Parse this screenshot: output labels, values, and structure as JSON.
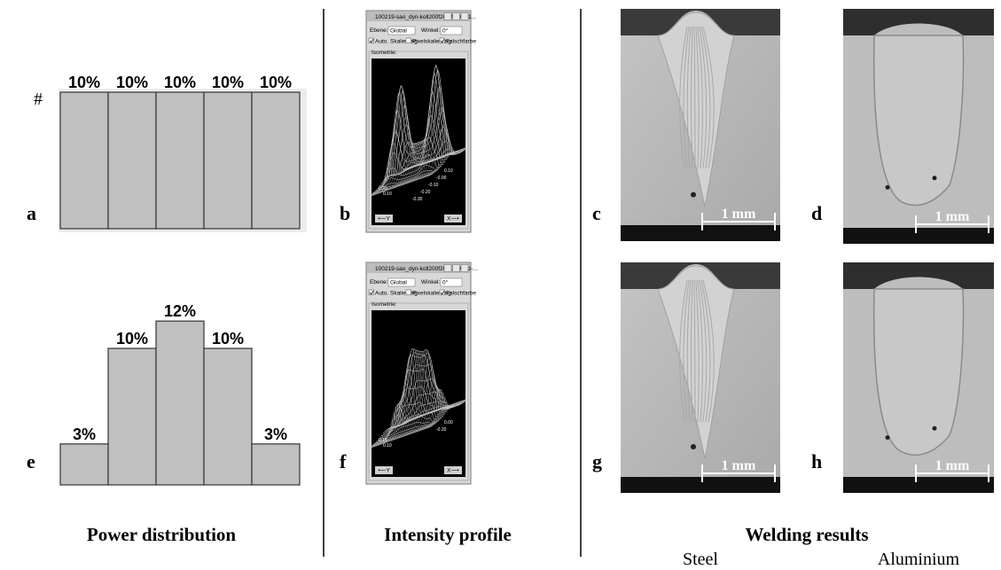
{
  "marker": "#",
  "power_distribution": {
    "title": "Power distribution",
    "panels": [
      {
        "label": "a",
        "values": [
          10,
          10,
          10,
          10,
          10
        ],
        "value_labels": [
          "10%",
          "10%",
          "10%",
          "10%",
          "10%"
        ]
      },
      {
        "label": "e",
        "values": [
          3,
          10,
          12,
          10,
          3
        ],
        "value_labels": [
          "3%",
          "10%",
          "12%",
          "10%",
          "3%"
        ]
      }
    ]
  },
  "intensity_profile": {
    "title": "Intensity profile",
    "windows": [
      {
        "label": "b",
        "title": "100219-sao_dyn-koll200f200-500W-1...",
        "plane_label": "Ebene:",
        "plane": "Global",
        "angle_label": "Winkel:",
        "angle": "0°",
        "options": [
          "Auto. Skalierung",
          "Pixelskalierung",
          "Falschfarbe"
        ],
        "group": "Isometrie:",
        "y_button": "⟵Y",
        "x_button": "X⟶",
        "axis_ticks": [
          "0.10",
          "-0.00",
          "-0.10",
          "-0.20",
          "-0.30",
          "0.20",
          "0.10"
        ]
      },
      {
        "label": "f",
        "title": "100219-sao_dyn-koll200f200-1000Hz-...",
        "plane_label": "Ebene:",
        "plane": "Global",
        "angle_label": "Winkel:",
        "angle": "0°",
        "options": [
          "Auto. Skalierung",
          "Pixelskalierung",
          "Falschfarbe"
        ],
        "group": "Isometrie:",
        "y_button": "⟵Y",
        "x_button": "X⟶",
        "axis_ticks": [
          "0.00",
          "-0.20",
          "0.15",
          "0.10"
        ]
      }
    ]
  },
  "welding_results": {
    "title": "Welding results",
    "columns": [
      "Steel",
      "Aluminium"
    ],
    "images": [
      {
        "label": "c",
        "scale": "1 mm"
      },
      {
        "label": "d",
        "scale": "1 mm"
      },
      {
        "label": "g",
        "scale": "1 mm"
      },
      {
        "label": "h",
        "scale": "1 mm"
      }
    ]
  }
}
